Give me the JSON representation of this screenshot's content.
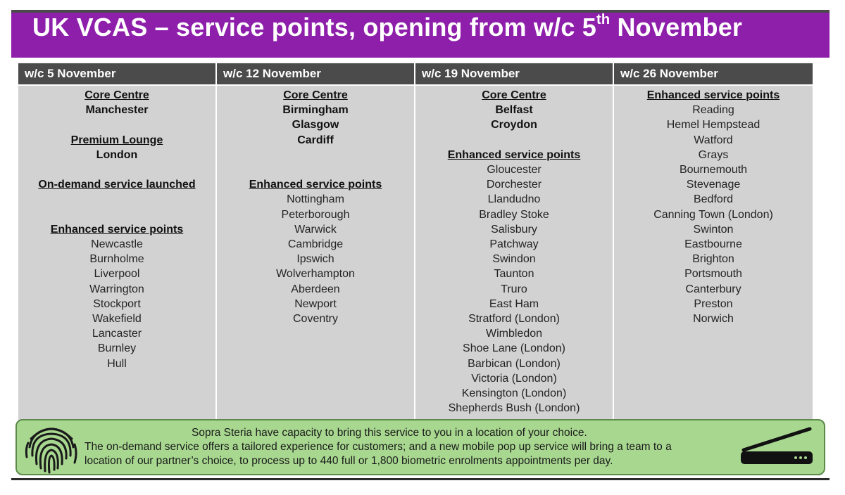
{
  "title": {
    "main": "UK VCAS – service points, opening from w/c 5",
    "sup": "th",
    "end": " November"
  },
  "columns": [
    {
      "header": "w/c 5 November",
      "core_heading": "Core Centre",
      "core": [
        "Manchester"
      ],
      "premium_heading": "Premium Lounge",
      "premium": [
        "London"
      ],
      "ondemand_heading": "On-demand service launched",
      "enhanced_heading": "Enhanced service points",
      "enhanced": [
        "Newcastle",
        "Burnholme",
        "Liverpool",
        "Warrington",
        "Stockport",
        "Wakefield",
        "Lancaster",
        "Burnley",
        "Hull"
      ]
    },
    {
      "header": "w/c 12 November",
      "core_heading": "Core Centre",
      "core": [
        "Birmingham",
        "Glasgow",
        "Cardiff"
      ],
      "enhanced_heading": "Enhanced service points",
      "enhanced": [
        "Nottingham",
        "Peterborough",
        "Warwick",
        "Cambridge",
        "Ipswich",
        "Wolverhampton",
        "Aberdeen",
        "Newport",
        "Coventry"
      ]
    },
    {
      "header": "w/c 19 November",
      "core_heading": "Core Centre",
      "core": [
        "Belfast",
        "Croydon"
      ],
      "enhanced_heading": "Enhanced service points",
      "enhanced": [
        "Gloucester",
        "Dorchester",
        "Llandudno",
        "Bradley Stoke",
        "Salisbury",
        "Patchway",
        "Swindon",
        "Taunton",
        "Truro",
        "East Ham",
        "Stratford (London)",
        "Wimbledon",
        "Shoe Lane (London)",
        "Barbican (London)",
        "Victoria (London)",
        "Kensington (London)",
        "Shepherds Bush (London)"
      ]
    },
    {
      "header": "w/c 26 November",
      "enhanced_heading": "Enhanced service points",
      "enhanced": [
        "Reading",
        "Hemel Hempstead",
        "Watford",
        "Grays",
        "Bournemouth",
        "Stevenage",
        "Bedford",
        "Canning Town (London)",
        "Swinton",
        "Eastbourne",
        "Brighton",
        "Portsmouth",
        "Canterbury",
        "Preston",
        "Norwich"
      ]
    }
  ],
  "footer": {
    "line1": "Sopra Steria have capacity to bring this service to you in a location of your choice.",
    "line2": "The on-demand service offers a tailored experience for customers; and a new mobile pop up service will bring a team to a",
    "line3": "location of our partner’s choice, to process up to 440 full or 1,800 biometric enrolments appointments per day."
  },
  "icons": {
    "left": "fingerprint-icon",
    "right": "scanner-icon"
  },
  "colors": {
    "title_bg": "#8e1fab",
    "header_bg": "#4b4b4b",
    "body_bg": "#d2d2d2",
    "footer_bg": "#a8d890"
  }
}
